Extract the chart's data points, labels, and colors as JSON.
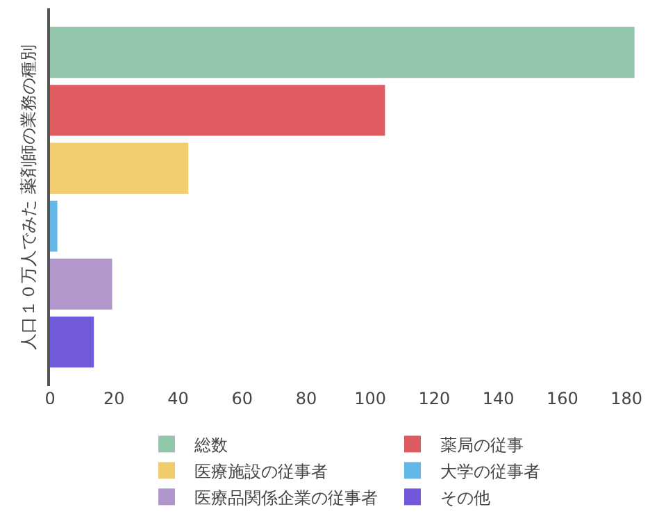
{
  "chart_data": {
    "type": "bar",
    "orientation": "horizontal",
    "ylabel": "人口１０万人でみた 薬剤師の業務の種別",
    "categories": [
      null
    ],
    "series": [
      {
        "name": "総数",
        "color": "#8dc3a7",
        "values": [
          182.5
        ]
      },
      {
        "name": "薬局の従事",
        "color": "#dc5356",
        "values": [
          104.6
        ]
      },
      {
        "name": "医療施設の従事者",
        "color": "#f0ca68",
        "values": [
          43.2
        ]
      },
      {
        "name": "大学の従事者",
        "color": "#5ab4e5",
        "values": [
          2.3
        ]
      },
      {
        "name": "医療品関係企業の従事者",
        "color": "#ad91c9",
        "values": [
          19.4
        ]
      },
      {
        "name": "その他",
        "color": "#6c51d9",
        "values": [
          13.7
        ]
      }
    ],
    "xlim": [
      0,
      183
    ],
    "xticks": [
      0,
      20,
      40,
      60,
      80,
      100,
      120,
      140,
      160,
      180
    ],
    "legend": "bottom"
  }
}
